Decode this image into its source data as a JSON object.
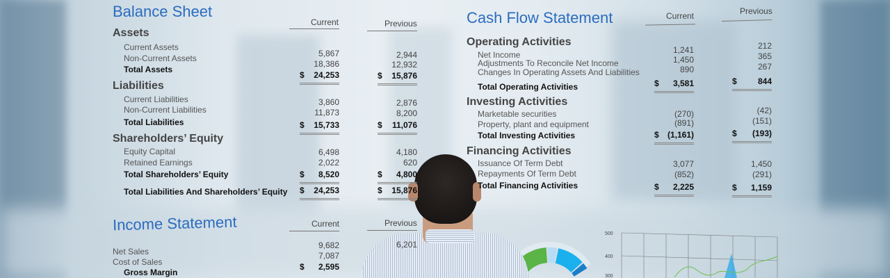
{
  "balance_sheet": {
    "title": "Balance Sheet",
    "col_current": "Current",
    "col_previous": "Previous",
    "sections": [
      {
        "heading": "Assets",
        "rows": [
          {
            "label": "Current Assets",
            "current": "5,867",
            "previous": "2,944"
          },
          {
            "label": "Non-Current Assets",
            "current": "18,386",
            "previous": "12,932"
          },
          {
            "label": "Total Assets",
            "current": "24,253",
            "previous": "15,876",
            "total": true
          }
        ]
      },
      {
        "heading": "Liabilities",
        "rows": [
          {
            "label": "Current Liabilities",
            "current": "3,860",
            "previous": "2,876"
          },
          {
            "label": "Non-Current Liabilities",
            "current": "11,873",
            "previous": "8,200"
          },
          {
            "label": "Total Liabilities",
            "current": "15,733",
            "previous": "11,076",
            "total": true
          }
        ]
      },
      {
        "heading": "Shareholders’ Equity",
        "rows": [
          {
            "label": "Equity Capital",
            "current": "6,498",
            "previous": "4,180"
          },
          {
            "label": "Retained Earnings",
            "current": "2,022",
            "previous": "620"
          },
          {
            "label": "Total Shareholders’ Equity",
            "current": "8,520",
            "previous": "4,800",
            "total": true
          },
          {
            "label": "Total Liabilities And Shareholders’ Equity",
            "current": "24,253",
            "previous": "15,876",
            "total": true
          }
        ]
      }
    ]
  },
  "cash_flow": {
    "title": "Cash Flow Statement",
    "col_current": "Current",
    "col_previous": "Previous",
    "sections": [
      {
        "heading": "Operating Activities",
        "rows": [
          {
            "label": "Net Income",
            "current": "1,241",
            "previous": "212"
          },
          {
            "label": "Adjustments To Reconcile Net Income",
            "current": "1,450",
            "previous": "365"
          },
          {
            "label": "Changes In Operating Assets And Liabilities",
            "current": "890",
            "previous": "267"
          },
          {
            "label": "Total Operating Activities",
            "current": "3,581",
            "previous": "844",
            "total": true
          }
        ]
      },
      {
        "heading": "Investing Activities",
        "rows": [
          {
            "label": "Marketable securities",
            "current": "(270)",
            "previous": "(42)"
          },
          {
            "label": "Property, plant and equipment",
            "current": "(891)",
            "previous": "(151)"
          },
          {
            "label": "Total Investing Activities",
            "current": "(1,161)",
            "previous": "(193)",
            "total": true
          }
        ]
      },
      {
        "heading": "Financing Activities",
        "rows": [
          {
            "label": "Issuance Of Term Debt",
            "current": "3,077",
            "previous": "1,450"
          },
          {
            "label": "Repayments Of Term Debt",
            "current": "(852)",
            "previous": "(291)"
          },
          {
            "label": "Total Financing Activities",
            "current": "2,225",
            "previous": "1,159",
            "total": true
          }
        ]
      }
    ]
  },
  "income_statement": {
    "title": "Income Statement",
    "col_current": "Current",
    "col_previous": "Previous",
    "rows": [
      {
        "label": "Net Sales",
        "current": "9,682",
        "previous": "6,201"
      },
      {
        "label": "Cost of Sales",
        "current": "7,087",
        "previous": ""
      },
      {
        "label": "Gross Margin",
        "current": "2,595",
        "previous": "",
        "total": true
      }
    ]
  },
  "currency_symbol": "$",
  "line_chart": {
    "y_ticks": [
      "500",
      "400",
      "300"
    ]
  },
  "colors": {
    "title_blue": "#2b6cbf",
    "donut": [
      "#5ab446",
      "#b8dcf5",
      "#1ab0ee",
      "#1a7fc6"
    ],
    "line": "#6cc04a"
  }
}
